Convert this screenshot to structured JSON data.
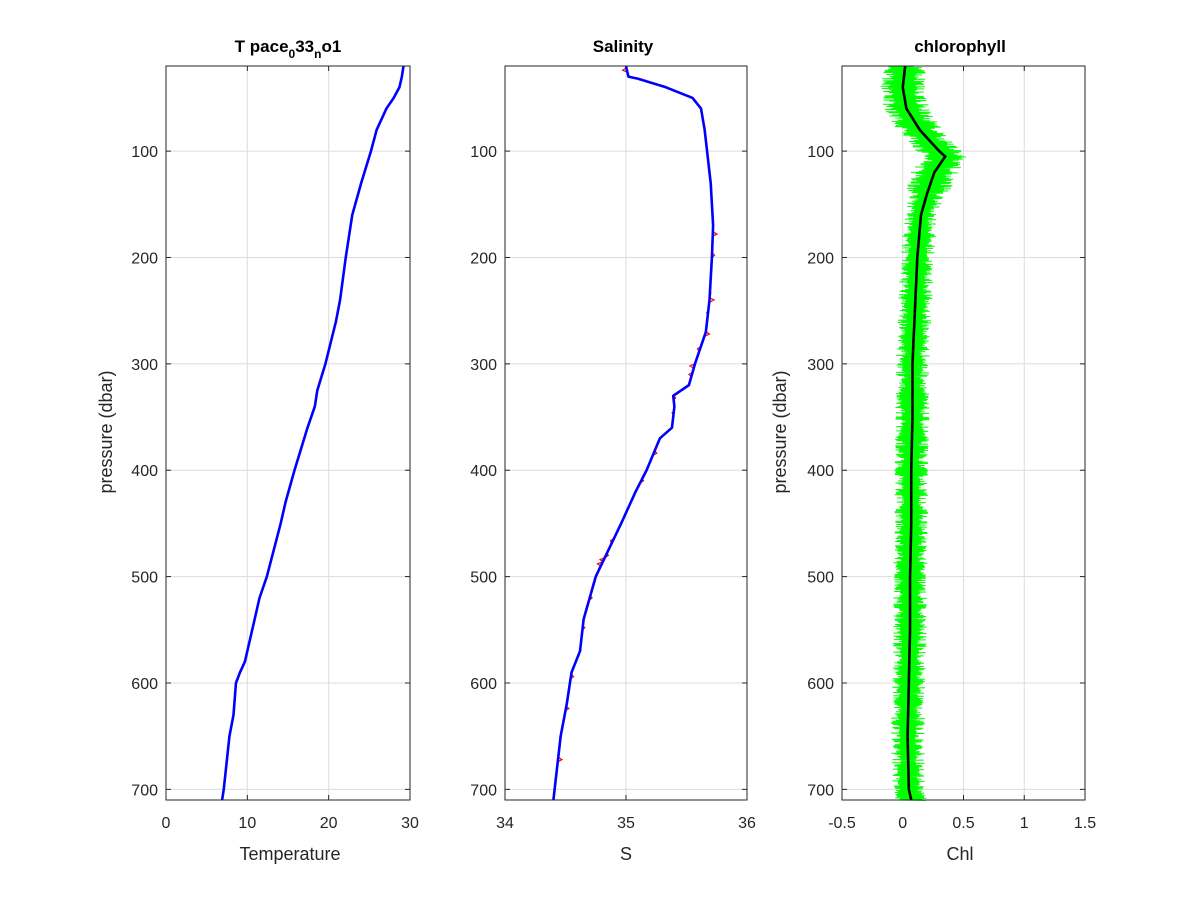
{
  "chart_data": [
    {
      "type": "line",
      "title": "T pace",
      "title_parts": {
        "base": "T pace",
        "sub1": "0",
        "mid": "33",
        "sub2": "n",
        "tail": "o1"
      },
      "xlabel": "Temperature",
      "ylabel": "pressure (dbar)",
      "xlim": [
        0,
        30
      ],
      "ylim": [
        20,
        710
      ],
      "y_reversed": true,
      "grid": true,
      "xticks": [
        "0",
        "10",
        "20",
        "30"
      ],
      "yticks": [
        "100",
        "200",
        "300",
        "400",
        "500",
        "600",
        "700"
      ],
      "colors": {
        "line": "#0000ff"
      },
      "series": [
        {
          "pressure": [
            20,
            30,
            40,
            50,
            60,
            80,
            100,
            130,
            160,
            200,
            240,
            260,
            300,
            325,
            340,
            360,
            400,
            430,
            450,
            500,
            520,
            560,
            580,
            590,
            600,
            630,
            650,
            700,
            710
          ],
          "values": [
            29.2,
            29.0,
            28.7,
            28.0,
            27.1,
            25.9,
            25.2,
            24.0,
            22.9,
            22.1,
            21.4,
            20.9,
            19.6,
            18.6,
            18.3,
            17.4,
            15.8,
            14.7,
            14.1,
            12.4,
            11.5,
            10.3,
            9.7,
            9.1,
            8.6,
            8.3,
            7.8,
            7.1,
            6.9
          ]
        }
      ]
    },
    {
      "type": "line",
      "title": "Salinity",
      "xlabel": "S",
      "ylabel": "",
      "xlim": [
        34,
        36
      ],
      "ylim": [
        20,
        710
      ],
      "y_reversed": true,
      "grid": true,
      "xticks": [
        "34",
        "35",
        "36"
      ],
      "yticks": [
        "100",
        "200",
        "300",
        "400",
        "500",
        "600",
        "700"
      ],
      "colors": {
        "line": "#0000ff",
        "noise": "#ff0000"
      },
      "series": [
        {
          "pressure": [
            20,
            30,
            32,
            40,
            50,
            60,
            80,
            100,
            130,
            170,
            200,
            240,
            270,
            300,
            320,
            330,
            340,
            360,
            370,
            400,
            420,
            450,
            500,
            540,
            570,
            590,
            620,
            650,
            700,
            710
          ],
          "values": [
            35.0,
            35.02,
            35.1,
            35.33,
            35.55,
            35.62,
            35.65,
            35.67,
            35.7,
            35.72,
            35.71,
            35.69,
            35.66,
            35.57,
            35.52,
            35.39,
            35.4,
            35.38,
            35.28,
            35.17,
            35.08,
            34.96,
            34.75,
            34.65,
            34.62,
            34.55,
            34.51,
            34.46,
            34.41,
            34.4
          ]
        }
      ]
    },
    {
      "type": "line",
      "title": "chlorophyll",
      "xlabel": "Chl",
      "ylabel": "pressure (dbar)",
      "xlim": [
        -0.5,
        1.5
      ],
      "ylim": [
        20,
        710
      ],
      "y_reversed": true,
      "grid": true,
      "xticks": [
        "-0.5",
        "0",
        "0.5",
        "1",
        "1.5"
      ],
      "yticks": [
        "100",
        "200",
        "300",
        "400",
        "500",
        "600",
        "700"
      ],
      "colors": {
        "line": "#000000",
        "noise": "#00ff00"
      },
      "noise_amplitude": 0.1,
      "series": [
        {
          "pressure": [
            20,
            40,
            60,
            80,
            90,
            100,
            105,
            110,
            120,
            140,
            160,
            200,
            250,
            300,
            350,
            400,
            450,
            500,
            550,
            600,
            650,
            700,
            710
          ],
          "values": [
            0.02,
            0.0,
            0.03,
            0.14,
            0.22,
            0.3,
            0.35,
            0.32,
            0.26,
            0.2,
            0.15,
            0.12,
            0.1,
            0.08,
            0.08,
            0.07,
            0.07,
            0.06,
            0.06,
            0.05,
            0.04,
            0.05,
            0.07
          ]
        }
      ]
    }
  ]
}
